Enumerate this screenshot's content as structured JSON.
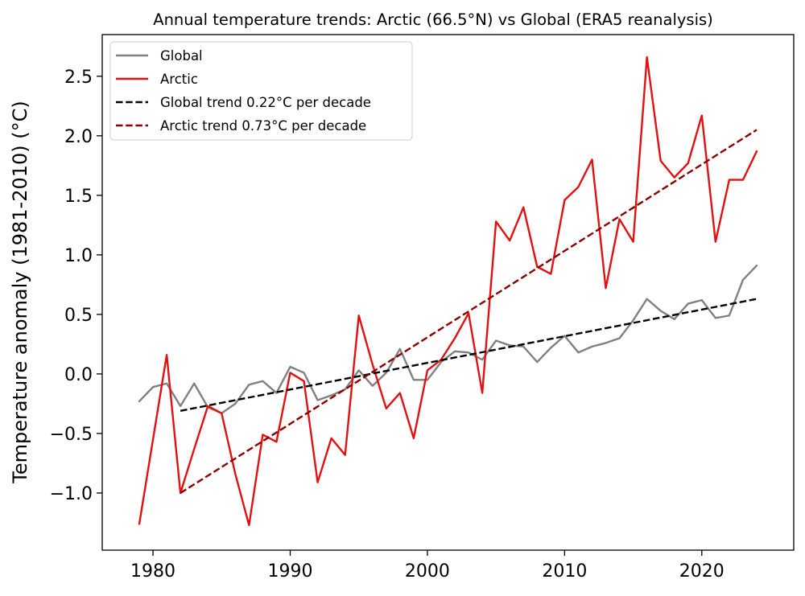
{
  "chart_data": {
    "type": "line",
    "title": "Annual temperature trends: Arctic (66.5°N) vs Global (ERA5 reanalysis)",
    "xlabel": "",
    "ylabel": "Temperature anomaly (1981-2010) (°C)",
    "xlim": [
      1976.3,
      2026.7
    ],
    "ylim": [
      -1.48,
      2.85
    ],
    "x_ticks": [
      1980,
      1990,
      2000,
      2010,
      2020
    ],
    "x_tick_labels": [
      "1980",
      "1990",
      "2000",
      "2010",
      "2020"
    ],
    "y_ticks": [
      -1.0,
      -0.5,
      0.0,
      0.5,
      1.0,
      1.5,
      2.0,
      2.5
    ],
    "y_tick_labels": [
      "−1.0",
      "−0.5",
      "0.0",
      "0.5",
      "1.0",
      "1.5",
      "2.0",
      "2.5"
    ],
    "grid": false,
    "legend_position": "top-left",
    "series": [
      {
        "name": "Global",
        "color": "#808080",
        "style": "solid",
        "x": [
          1979,
          1980,
          1981,
          1982,
          1983,
          1984,
          1985,
          1986,
          1987,
          1988,
          1989,
          1990,
          1991,
          1992,
          1993,
          1994,
          1995,
          1996,
          1997,
          1998,
          1999,
          2000,
          2001,
          2002,
          2003,
          2004,
          2005,
          2006,
          2007,
          2008,
          2009,
          2010,
          2011,
          2012,
          2013,
          2014,
          2015,
          2016,
          2017,
          2018,
          2019,
          2020,
          2021,
          2022,
          2023,
          2024
        ],
        "y": [
          -0.23,
          -0.11,
          -0.08,
          -0.27,
          -0.08,
          -0.28,
          -0.33,
          -0.25,
          -0.09,
          -0.06,
          -0.16,
          0.06,
          0.01,
          -0.22,
          -0.18,
          -0.13,
          0.03,
          -0.1,
          0.01,
          0.21,
          -0.05,
          -0.05,
          0.1,
          0.19,
          0.18,
          0.12,
          0.28,
          0.24,
          0.23,
          0.1,
          0.22,
          0.32,
          0.18,
          0.23,
          0.26,
          0.3,
          0.45,
          0.63,
          0.53,
          0.46,
          0.59,
          0.62,
          0.47,
          0.49,
          0.79,
          0.91
        ]
      },
      {
        "name": "Arctic",
        "color": "#e41010",
        "style": "solid",
        "x": [
          1979,
          1980,
          1981,
          1982,
          1983,
          1984,
          1985,
          1986,
          1987,
          1988,
          1989,
          1990,
          1991,
          1992,
          1993,
          1994,
          1995,
          1996,
          1997,
          1998,
          1999,
          2000,
          2001,
          2002,
          2003,
          2004,
          2005,
          2006,
          2007,
          2008,
          2009,
          2010,
          2011,
          2012,
          2013,
          2014,
          2015,
          2016,
          2017,
          2018,
          2019,
          2020,
          2021,
          2022,
          2023,
          2024
        ],
        "y": [
          -1.26,
          -0.55,
          0.16,
          -1.0,
          -0.63,
          -0.27,
          -0.33,
          -0.84,
          -1.27,
          -0.51,
          -0.57,
          0.01,
          -0.06,
          -0.91,
          -0.54,
          -0.68,
          0.49,
          0.08,
          -0.29,
          -0.16,
          -0.54,
          0.03,
          0.12,
          0.3,
          0.51,
          -0.16,
          1.28,
          1.12,
          1.4,
          0.9,
          0.84,
          1.46,
          1.57,
          1.8,
          0.72,
          1.3,
          1.11,
          2.66,
          1.79,
          1.65,
          1.77,
          2.17,
          1.11,
          1.63,
          1.63,
          1.87
        ]
      },
      {
        "name": "Global trend 0.22°C per decade",
        "color": "#000000",
        "style": "dashed",
        "x": [
          1982,
          2024
        ],
        "y": [
          -0.31,
          0.63
        ]
      },
      {
        "name": "Arctic trend 0.73°C per decade",
        "color": "#8b0000",
        "style": "dashed",
        "x": [
          1982,
          2024
        ],
        "y": [
          -1.0,
          2.05
        ]
      }
    ]
  }
}
